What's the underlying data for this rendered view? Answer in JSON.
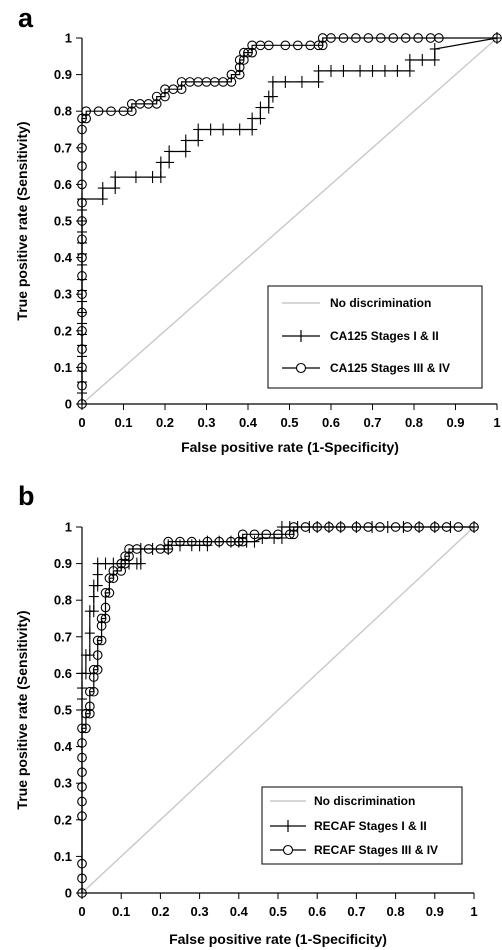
{
  "chart_data": [
    {
      "panel": "a",
      "type": "line",
      "xlabel": "False positive rate (1-Specificity)",
      "ylabel": "True positive rate (Sensitivity)",
      "xlim": [
        0,
        1
      ],
      "ylim": [
        0,
        1
      ],
      "x_ticks": [
        "0",
        "0.1",
        "0.2",
        "0.3",
        "0.4",
        "0.5",
        "0.6",
        "0.7",
        "0.8",
        "0.9",
        "1"
      ],
      "y_ticks": [
        "0",
        "0.1",
        "0.2",
        "0.3",
        "0.4",
        "0.5",
        "0.6",
        "0.7",
        "0.8",
        "0.9",
        "1"
      ],
      "grid": false,
      "legend_position": "bottom-right",
      "series": [
        {
          "name": "No discrimination",
          "marker": "none",
          "color": "#c8c8c8",
          "points": [
            [
              0,
              0
            ],
            [
              1,
              1
            ]
          ]
        },
        {
          "name": "CA125 Stages I & II",
          "marker": "plus",
          "color": "#000000",
          "points": [
            [
              0,
              0
            ],
            [
              0,
              0.03
            ],
            [
              0,
              0.06
            ],
            [
              0,
              0.09
            ],
            [
              0,
              0.13
            ],
            [
              0,
              0.16
            ],
            [
              0,
              0.19
            ],
            [
              0,
              0.22
            ],
            [
              0,
              0.25
            ],
            [
              0,
              0.28
            ],
            [
              0,
              0.31
            ],
            [
              0,
              0.34
            ],
            [
              0,
              0.38
            ],
            [
              0,
              0.41
            ],
            [
              0,
              0.44
            ],
            [
              0,
              0.47
            ],
            [
              0,
              0.5
            ],
            [
              0,
              0.53
            ],
            [
              0,
              0.56
            ],
            [
              0.05,
              0.56
            ],
            [
              0.05,
              0.59
            ],
            [
              0.08,
              0.59
            ],
            [
              0.08,
              0.62
            ],
            [
              0.13,
              0.62
            ],
            [
              0.17,
              0.62
            ],
            [
              0.19,
              0.62
            ],
            [
              0.19,
              0.66
            ],
            [
              0.21,
              0.66
            ],
            [
              0.21,
              0.69
            ],
            [
              0.25,
              0.69
            ],
            [
              0.25,
              0.72
            ],
            [
              0.28,
              0.72
            ],
            [
              0.28,
              0.75
            ],
            [
              0.31,
              0.75
            ],
            [
              0.34,
              0.75
            ],
            [
              0.38,
              0.75
            ],
            [
              0.41,
              0.75
            ],
            [
              0.41,
              0.78
            ],
            [
              0.43,
              0.78
            ],
            [
              0.43,
              0.81
            ],
            [
              0.45,
              0.81
            ],
            [
              0.45,
              0.84
            ],
            [
              0.46,
              0.84
            ],
            [
              0.46,
              0.88
            ],
            [
              0.49,
              0.88
            ],
            [
              0.53,
              0.88
            ],
            [
              0.57,
              0.88
            ],
            [
              0.57,
              0.91
            ],
            [
              0.6,
              0.91
            ],
            [
              0.63,
              0.91
            ],
            [
              0.67,
              0.91
            ],
            [
              0.7,
              0.91
            ],
            [
              0.73,
              0.91
            ],
            [
              0.76,
              0.91
            ],
            [
              0.79,
              0.91
            ],
            [
              0.79,
              0.94
            ],
            [
              0.82,
              0.94
            ],
            [
              0.85,
              0.94
            ],
            [
              0.85,
              0.97
            ],
            [
              1,
              1
            ]
          ]
        },
        {
          "name": "CA125 Stages III & IV",
          "marker": "circle",
          "color": "#000000",
          "points": [
            [
              0,
              0
            ],
            [
              0,
              0.05
            ],
            [
              0,
              0.1
            ],
            [
              0,
              0.15
            ],
            [
              0,
              0.2
            ],
            [
              0,
              0.25
            ],
            [
              0,
              0.3
            ],
            [
              0,
              0.35
            ],
            [
              0,
              0.4
            ],
            [
              0,
              0.45
            ],
            [
              0,
              0.5
            ],
            [
              0,
              0.55
            ],
            [
              0,
              0.6
            ],
            [
              0,
              0.65
            ],
            [
              0,
              0.7
            ],
            [
              0,
              0.75
            ],
            [
              0,
              0.78
            ],
            [
              0.01,
              0.78
            ],
            [
              0.01,
              0.8
            ],
            [
              0.04,
              0.8
            ],
            [
              0.07,
              0.8
            ],
            [
              0.1,
              0.8
            ],
            [
              0.12,
              0.8
            ],
            [
              0.12,
              0.82
            ],
            [
              0.14,
              0.82
            ],
            [
              0.16,
              0.82
            ],
            [
              0.18,
              0.82
            ],
            [
              0.18,
              0.84
            ],
            [
              0.2,
              0.84
            ],
            [
              0.2,
              0.86
            ],
            [
              0.22,
              0.86
            ],
            [
              0.24,
              0.86
            ],
            [
              0.24,
              0.88
            ],
            [
              0.26,
              0.88
            ],
            [
              0.28,
              0.88
            ],
            [
              0.3,
              0.88
            ],
            [
              0.32,
              0.88
            ],
            [
              0.34,
              0.88
            ],
            [
              0.36,
              0.88
            ],
            [
              0.36,
              0.9
            ],
            [
              0.38,
              0.9
            ],
            [
              0.38,
              0.92
            ],
            [
              0.38,
              0.94
            ],
            [
              0.39,
              0.94
            ],
            [
              0.39,
              0.96
            ],
            [
              0.4,
              0.96
            ],
            [
              0.41,
              0.96
            ],
            [
              0.41,
              0.98
            ],
            [
              0.43,
              0.98
            ],
            [
              0.45,
              0.98
            ],
            [
              0.49,
              0.98
            ],
            [
              0.52,
              0.98
            ],
            [
              0.55,
              0.98
            ],
            [
              0.57,
              0.98
            ],
            [
              0.58,
              0.98
            ],
            [
              0.58,
              1
            ],
            [
              0.6,
              1
            ],
            [
              0.63,
              1
            ],
            [
              0.66,
              1
            ],
            [
              0.69,
              1
            ],
            [
              0.72,
              1
            ],
            [
              0.75,
              1
            ],
            [
              0.78,
              1
            ],
            [
              0.81,
              1
            ],
            [
              0.84,
              1
            ],
            [
              0.86,
              1
            ],
            [
              1,
              1
            ]
          ]
        }
      ]
    },
    {
      "panel": "b",
      "type": "line",
      "xlabel": "False positive rate (1-Specificity)",
      "ylabel": "True positive rate (Sensitivity)",
      "xlim": [
        0,
        1
      ],
      "ylim": [
        0,
        1
      ],
      "x_ticks": [
        "0",
        "0.1",
        "0.2",
        "0.3",
        "0.4",
        "0.5",
        "0.6",
        "0.7",
        "0.8",
        "0.9",
        "1"
      ],
      "y_ticks": [
        "0",
        "0.1",
        "0.2",
        "0.3",
        "0.4",
        "0.5",
        "0.6",
        "0.7",
        "0.8",
        "0.9",
        "1"
      ],
      "grid": false,
      "legend_position": "bottom-right",
      "series": [
        {
          "name": "No discrimination",
          "marker": "none",
          "color": "#c8c8c8",
          "points": [
            [
              0,
              0
            ],
            [
              1,
              1
            ]
          ]
        },
        {
          "name": "RECAF Stages I & II",
          "marker": "plus",
          "color": "#000000",
          "points": [
            [
              0,
              0
            ],
            [
              0,
              0.5
            ],
            [
              0,
              0.53
            ],
            [
              0,
              0.56
            ],
            [
              0,
              0.6
            ],
            [
              0.01,
              0.6
            ],
            [
              0.01,
              0.65
            ],
            [
              0.02,
              0.65
            ],
            [
              0.02,
              0.71
            ],
            [
              0.02,
              0.77
            ],
            [
              0.03,
              0.77
            ],
            [
              0.03,
              0.81
            ],
            [
              0.03,
              0.84
            ],
            [
              0.04,
              0.84
            ],
            [
              0.04,
              0.87
            ],
            [
              0.04,
              0.9
            ],
            [
              0.06,
              0.9
            ],
            [
              0.08,
              0.9
            ],
            [
              0.1,
              0.9
            ],
            [
              0.12,
              0.9
            ],
            [
              0.14,
              0.9
            ],
            [
              0.15,
              0.9
            ],
            [
              0.15,
              0.94
            ],
            [
              0.18,
              0.94
            ],
            [
              0.22,
              0.94
            ],
            [
              0.22,
              0.95
            ],
            [
              0.25,
              0.95
            ],
            [
              0.28,
              0.95
            ],
            [
              0.3,
              0.95
            ],
            [
              0.32,
              0.95
            ],
            [
              0.32,
              0.96
            ],
            [
              0.35,
              0.96
            ],
            [
              0.38,
              0.96
            ],
            [
              0.4,
              0.96
            ],
            [
              0.42,
              0.96
            ],
            [
              0.44,
              0.96
            ],
            [
              0.46,
              0.97
            ],
            [
              0.49,
              0.97
            ],
            [
              0.51,
              0.97
            ],
            [
              0.51,
              1
            ],
            [
              0.53,
              1
            ],
            [
              0.55,
              1
            ],
            [
              0.58,
              1
            ],
            [
              0.6,
              1
            ],
            [
              0.63,
              1
            ],
            [
              0.66,
              1
            ],
            [
              0.7,
              1
            ],
            [
              0.74,
              1
            ],
            [
              0.78,
              1
            ],
            [
              0.82,
              1
            ],
            [
              0.86,
              1
            ],
            [
              0.9,
              1
            ],
            [
              0.94,
              1
            ],
            [
              1,
              1
            ]
          ]
        },
        {
          "name": "RECAF Stages III & IV",
          "marker": "circle",
          "color": "#000000",
          "points": [
            [
              0,
              0
            ],
            [
              0,
              0.04
            ],
            [
              0,
              0.08
            ],
            [
              0,
              0.21
            ],
            [
              0,
              0.25
            ],
            [
              0,
              0.29
            ],
            [
              0,
              0.33
            ],
            [
              0,
              0.37
            ],
            [
              0,
              0.41
            ],
            [
              0,
              0.45
            ],
            [
              0.01,
              0.45
            ],
            [
              0.01,
              0.49
            ],
            [
              0.02,
              0.49
            ],
            [
              0.02,
              0.51
            ],
            [
              0.02,
              0.55
            ],
            [
              0.03,
              0.55
            ],
            [
              0.03,
              0.59
            ],
            [
              0.03,
              0.61
            ],
            [
              0.04,
              0.61
            ],
            [
              0.04,
              0.65
            ],
            [
              0.04,
              0.69
            ],
            [
              0.05,
              0.69
            ],
            [
              0.05,
              0.73
            ],
            [
              0.05,
              0.75
            ],
            [
              0.06,
              0.75
            ],
            [
              0.06,
              0.78
            ],
            [
              0.06,
              0.82
            ],
            [
              0.07,
              0.82
            ],
            [
              0.07,
              0.86
            ],
            [
              0.08,
              0.86
            ],
            [
              0.08,
              0.88
            ],
            [
              0.1,
              0.88
            ],
            [
              0.1,
              0.9
            ],
            [
              0.11,
              0.9
            ],
            [
              0.11,
              0.92
            ],
            [
              0.12,
              0.92
            ],
            [
              0.12,
              0.94
            ],
            [
              0.14,
              0.94
            ],
            [
              0.17,
              0.94
            ],
            [
              0.2,
              0.94
            ],
            [
              0.22,
              0.94
            ],
            [
              0.22,
              0.96
            ],
            [
              0.25,
              0.96
            ],
            [
              0.28,
              0.96
            ],
            [
              0.32,
              0.96
            ],
            [
              0.35,
              0.96
            ],
            [
              0.38,
              0.96
            ],
            [
              0.4,
              0.96
            ],
            [
              0.41,
              0.96
            ],
            [
              0.41,
              0.98
            ],
            [
              0.44,
              0.98
            ],
            [
              0.47,
              0.98
            ],
            [
              0.5,
              0.98
            ],
            [
              0.53,
              0.98
            ],
            [
              0.54,
              0.98
            ],
            [
              0.54,
              1
            ],
            [
              0.57,
              1
            ],
            [
              0.6,
              1
            ],
            [
              0.63,
              1
            ],
            [
              0.66,
              1
            ],
            [
              0.7,
              1
            ],
            [
              0.73,
              1
            ],
            [
              0.76,
              1
            ],
            [
              0.8,
              1
            ],
            [
              0.83,
              1
            ],
            [
              0.86,
              1
            ],
            [
              0.9,
              1
            ],
            [
              0.93,
              1
            ],
            [
              0.96,
              1
            ],
            [
              1,
              1
            ]
          ]
        }
      ]
    }
  ]
}
